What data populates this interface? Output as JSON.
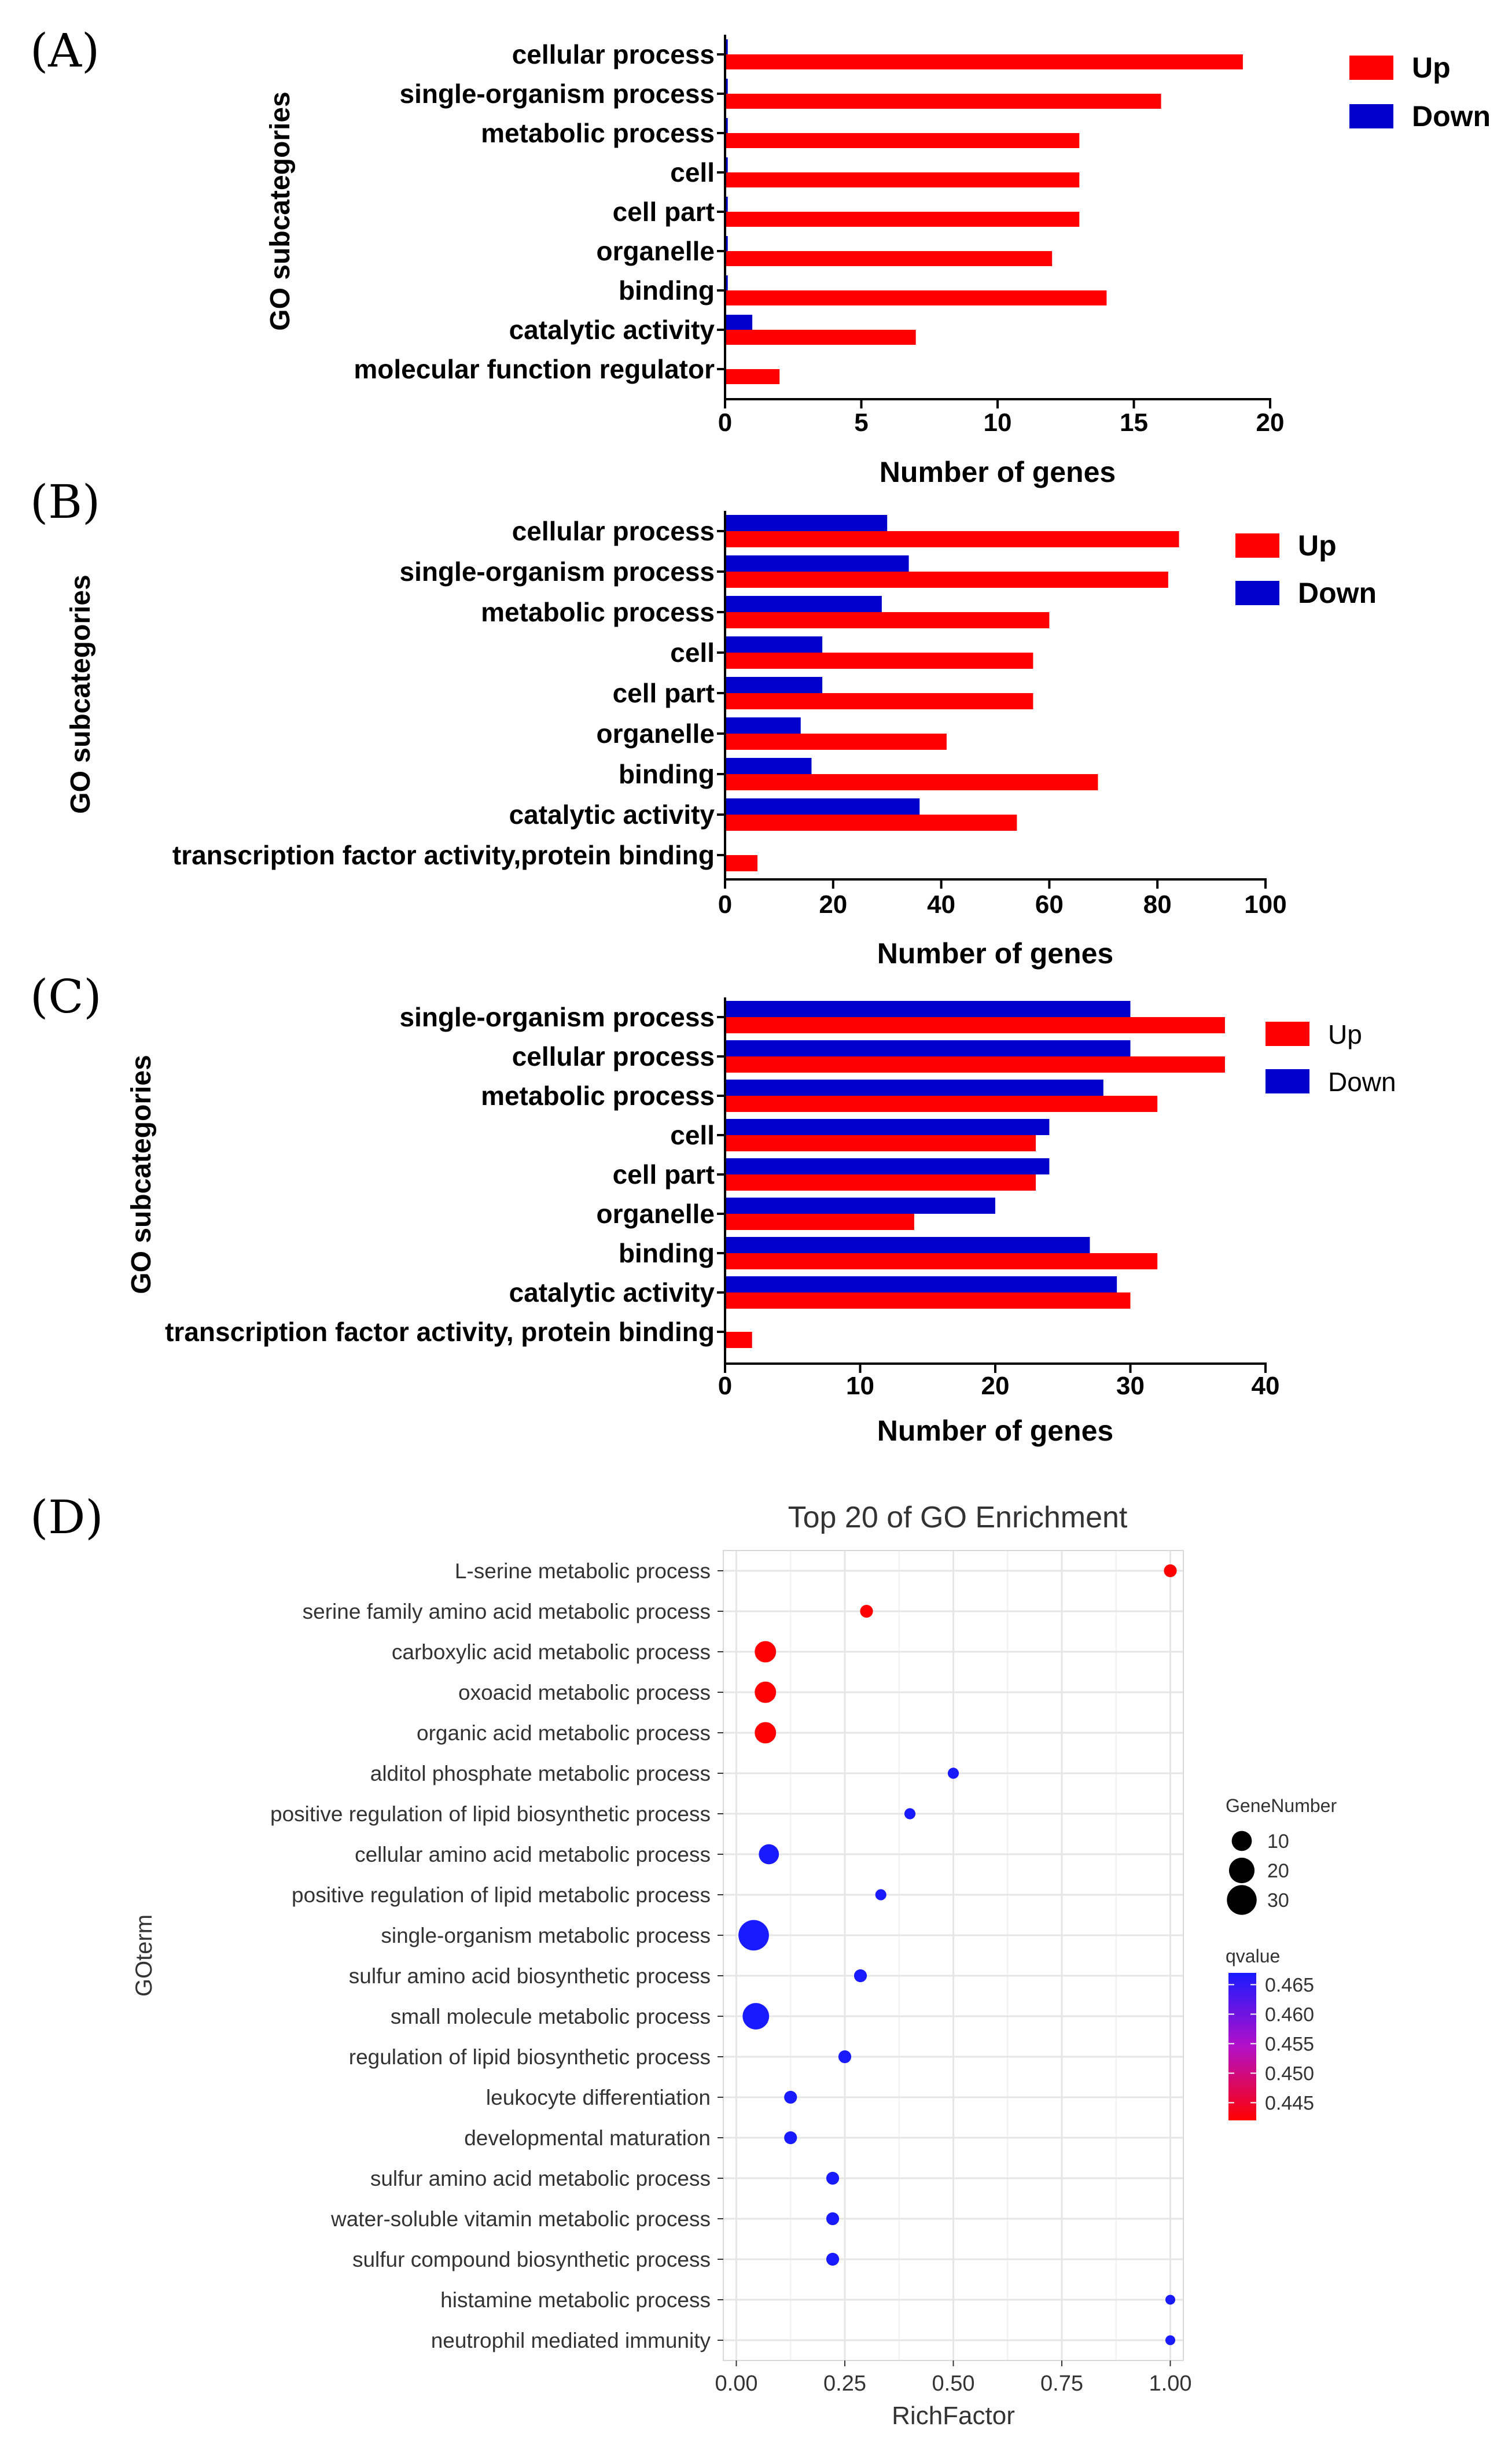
{
  "colors": {
    "up": "#ff0000",
    "down": "#0000cc",
    "grid": "#e6e6e6",
    "panel_bg": "#ffffff"
  },
  "chart_data": [
    {
      "type": "bar",
      "panel_label": "(A)",
      "orientation": "horizontal",
      "categories": [
        "cellular process",
        "single-organism process",
        "metabolic process",
        "cell",
        "cell part",
        "organelle",
        "binding",
        "catalytic activity",
        "molecular function regulator"
      ],
      "series": [
        {
          "name": "Up",
          "values": [
            19,
            16,
            13,
            13,
            13,
            12,
            14,
            7,
            2
          ]
        },
        {
          "name": "Down",
          "values": [
            0.1,
            0.1,
            0.1,
            0.1,
            0.1,
            0.1,
            0.1,
            1,
            0
          ]
        }
      ],
      "xlabel": "Number of genes",
      "ylabel": "GO subcategories",
      "xlim": [
        0,
        20
      ],
      "xticks": [
        0,
        5,
        10,
        15,
        20
      ],
      "legend_position": "top-right"
    },
    {
      "type": "bar",
      "panel_label": "(B)",
      "orientation": "horizontal",
      "categories": [
        "cellular process",
        "single-organism process",
        "metabolic process",
        "cell",
        "cell part",
        "organelle",
        "binding",
        "catalytic activity",
        "transcription factor activity,protein binding"
      ],
      "series": [
        {
          "name": "Up",
          "values": [
            84,
            82,
            60,
            57,
            57,
            41,
            69,
            54,
            6
          ]
        },
        {
          "name": "Down",
          "values": [
            30,
            34,
            29,
            18,
            18,
            14,
            16,
            36,
            0
          ]
        }
      ],
      "xlabel": "Number of genes",
      "ylabel": "GO subcategories",
      "xlim": [
        0,
        100
      ],
      "xticks": [
        0,
        20,
        40,
        60,
        80,
        100
      ],
      "legend_position": "top-right"
    },
    {
      "type": "bar",
      "panel_label": "(C)",
      "orientation": "horizontal",
      "categories": [
        "single-organism process",
        "cellular process",
        "metabolic process",
        "cell",
        "cell part",
        "organelle",
        "binding",
        "catalytic activity",
        "transcription factor activity, protein binding"
      ],
      "series": [
        {
          "name": "Up",
          "values": [
            37,
            37,
            32,
            23,
            23,
            14,
            32,
            30,
            2
          ]
        },
        {
          "name": "Down",
          "values": [
            30,
            30,
            28,
            24,
            24,
            20,
            27,
            29,
            0
          ]
        }
      ],
      "xlabel": "Number of genes",
      "ylabel": "GO subcategories",
      "xlim": [
        0,
        40
      ],
      "xticks": [
        0,
        10,
        20,
        30,
        40
      ],
      "legend_position": "top-right"
    },
    {
      "type": "scatter",
      "panel_label": "(D)",
      "title": "Top 20 of GO Enrichment",
      "categories": [
        "L-serine metabolic process",
        "serine family amino acid metabolic process",
        "carboxylic acid metabolic process",
        "oxoacid metabolic process",
        "organic acid metabolic process",
        "alditol phosphate metabolic process",
        "positive regulation of lipid biosynthetic process",
        "cellular amino acid metabolic process",
        "positive regulation of lipid metabolic process",
        "single-organism metabolic process",
        "sulfur amino acid biosynthetic process",
        "small molecule metabolic process",
        "regulation of lipid biosynthetic process",
        "leukocyte differentiation",
        "developmental maturation",
        "sulfur amino acid metabolic process",
        "water-soluble vitamin metabolic process",
        "sulfur compound biosynthetic process",
        "histamine metabolic process",
        "neutrophil mediated immunity"
      ],
      "rich_factor": [
        1.0,
        0.3,
        0.067,
        0.067,
        0.067,
        0.5,
        0.4,
        0.075,
        0.333,
        0.04,
        0.286,
        0.045,
        0.25,
        0.125,
        0.125,
        0.222,
        0.222,
        0.222,
        1.0,
        1.0
      ],
      "gene_number": [
        2,
        2,
        12,
        12,
        12,
        1,
        1,
        10,
        1,
        32,
        2,
        22,
        2,
        2,
        2,
        2,
        2,
        2,
        0.5,
        0.5
      ],
      "qvalue": [
        0.442,
        0.442,
        0.442,
        0.442,
        0.442,
        0.467,
        0.467,
        0.467,
        0.467,
        0.467,
        0.467,
        0.467,
        0.467,
        0.467,
        0.467,
        0.467,
        0.467,
        0.467,
        0.467,
        0.467
      ],
      "xlabel": "RichFactor",
      "ylabel": "GOterm",
      "xlim": [
        -0.03,
        1.03
      ],
      "xticks": [
        0.0,
        0.25,
        0.5,
        0.75,
        1.0
      ],
      "xtick_labels": [
        "0.00",
        "0.25",
        "0.50",
        "0.75",
        "1.00"
      ],
      "size_legend": {
        "title": "GeneNumber",
        "values": [
          10,
          20,
          30
        ],
        "labels": [
          "10",
          "20",
          "30"
        ]
      },
      "color_legend": {
        "title": "qvalue",
        "ticks": [
          0.465,
          0.46,
          0.455,
          0.45,
          0.445
        ],
        "labels": [
          "0.465",
          "0.460",
          "0.455",
          "0.450",
          "0.445"
        ],
        "range": [
          0.442,
          0.467
        ]
      },
      "grid": true
    }
  ]
}
